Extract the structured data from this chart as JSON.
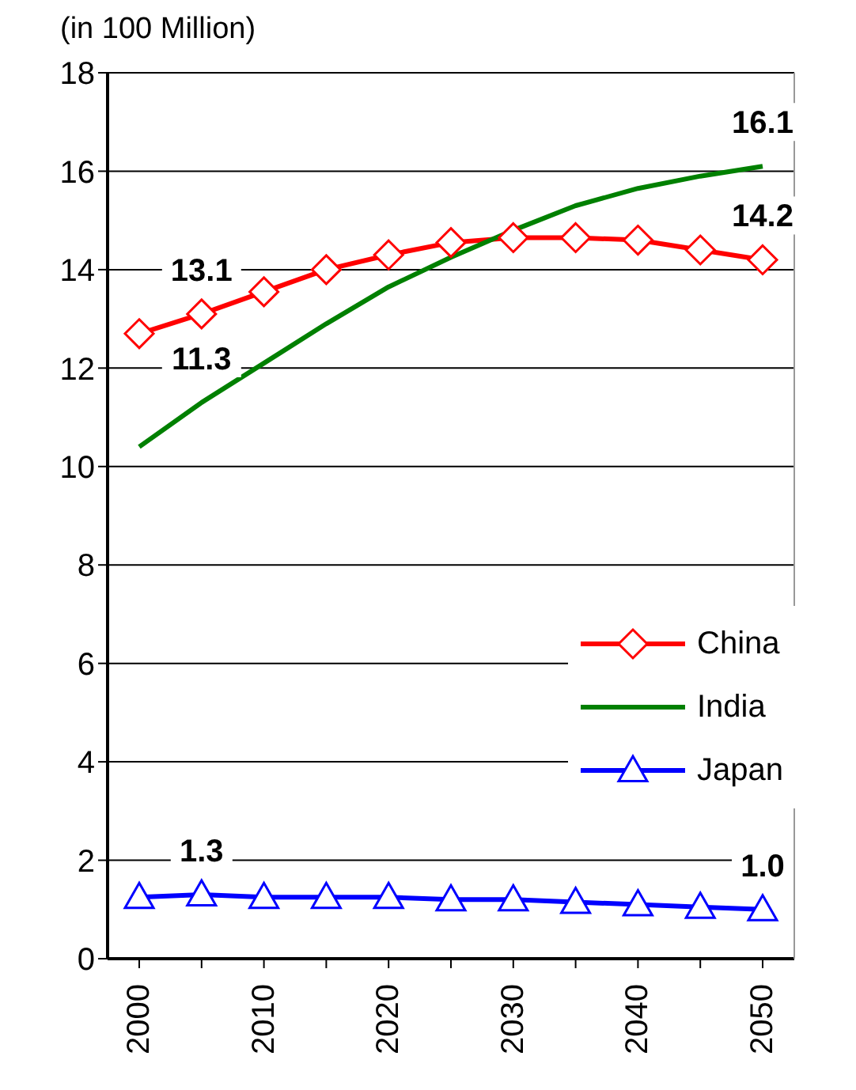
{
  "chart_data": {
    "type": "line",
    "ylabel": "(in 100 Million)",
    "categories": [
      "2000",
      null,
      "2010",
      null,
      "2020",
      null,
      "2030",
      null,
      "2040",
      null,
      "2050"
    ],
    "series": [
      {
        "name": "China",
        "color": "#ff0000",
        "marker": "diamond",
        "values": [
          12.7,
          13.1,
          13.55,
          14.0,
          14.3,
          14.55,
          14.65,
          14.65,
          14.6,
          14.4,
          14.2
        ],
        "value_labels": [
          null,
          "13.1",
          null,
          null,
          null,
          null,
          null,
          null,
          null,
          null,
          "14.2"
        ]
      },
      {
        "name": "India",
        "color": "#008000",
        "marker": "none",
        "values": [
          10.4,
          11.3,
          12.1,
          12.9,
          13.65,
          14.25,
          14.8,
          15.3,
          15.65,
          15.9,
          16.1
        ],
        "value_labels": [
          null,
          "11.3",
          null,
          null,
          null,
          null,
          null,
          null,
          null,
          null,
          "16.1"
        ]
      },
      {
        "name": "Japan",
        "color": "#0000ff",
        "marker": "triangle",
        "values": [
          1.25,
          1.3,
          1.25,
          1.25,
          1.25,
          1.2,
          1.2,
          1.15,
          1.1,
          1.05,
          1.0
        ],
        "value_labels": [
          null,
          "1.3",
          null,
          null,
          null,
          null,
          null,
          null,
          null,
          null,
          "1.0"
        ]
      }
    ],
    "ylim": [
      0,
      18
    ],
    "yticks": [
      0,
      2,
      4,
      6,
      8,
      10,
      12,
      14,
      16,
      18
    ],
    "grid": "y",
    "legend": "right"
  }
}
